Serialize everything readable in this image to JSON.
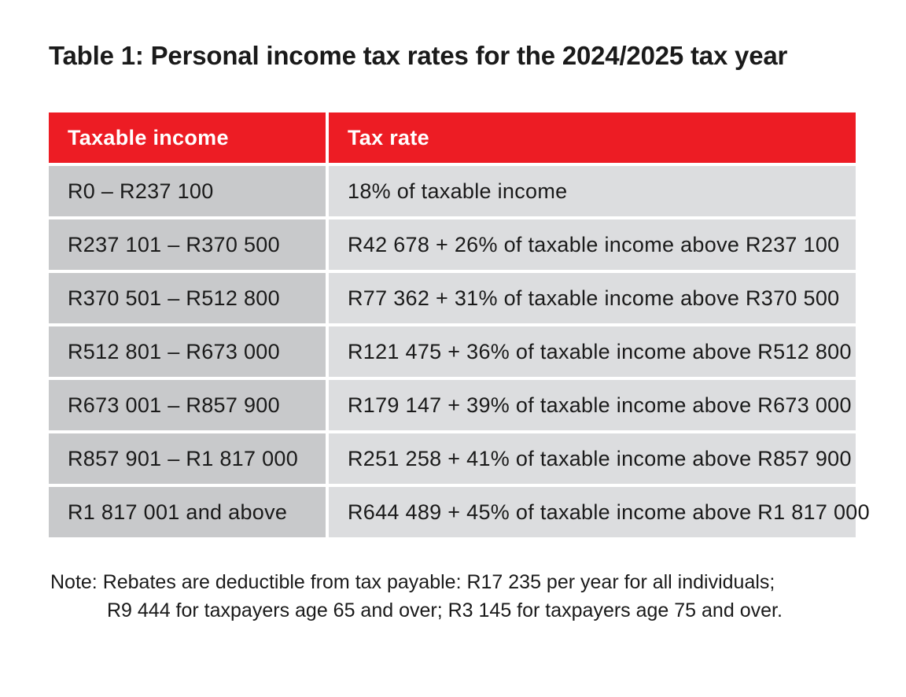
{
  "title": "Table 1: Personal income tax rates for the 2024/2025 tax year",
  "table": {
    "headers": [
      "Taxable income",
      "Tax rate"
    ],
    "rows": [
      [
        "R0 – R237 100",
        "18% of taxable income"
      ],
      [
        "R237 101 – R370 500",
        "R42 678 + 26% of taxable income above R237 100"
      ],
      [
        "R370 501 – R512 800",
        "R77 362 + 31% of taxable income above R370 500"
      ],
      [
        "R512 801 – R673 000",
        "R121 475 + 36% of taxable income above R512 800"
      ],
      [
        "R673 001 – R857 900",
        "R179 147 + 39% of taxable income above R673 000"
      ],
      [
        "R857 901 – R1 817 000",
        "R251 258 + 41% of taxable income above R857 900"
      ],
      [
        "R1 817 001 and above",
        "R644 489 + 45% of taxable income above R1 817 000"
      ]
    ]
  },
  "note": {
    "line1": "Note: Rebates are deductible from tax payable:  R17 235 per year for all individuals;",
    "line2": "R9 444 for taxpayers age 65 and over; R3 145 for taxpayers age 75 and over."
  },
  "colors": {
    "header_bg": "#ed1c24",
    "header_text": "#ffffff",
    "col1_bg": "#c8c9cb",
    "col2_bg": "#dcdddf"
  }
}
